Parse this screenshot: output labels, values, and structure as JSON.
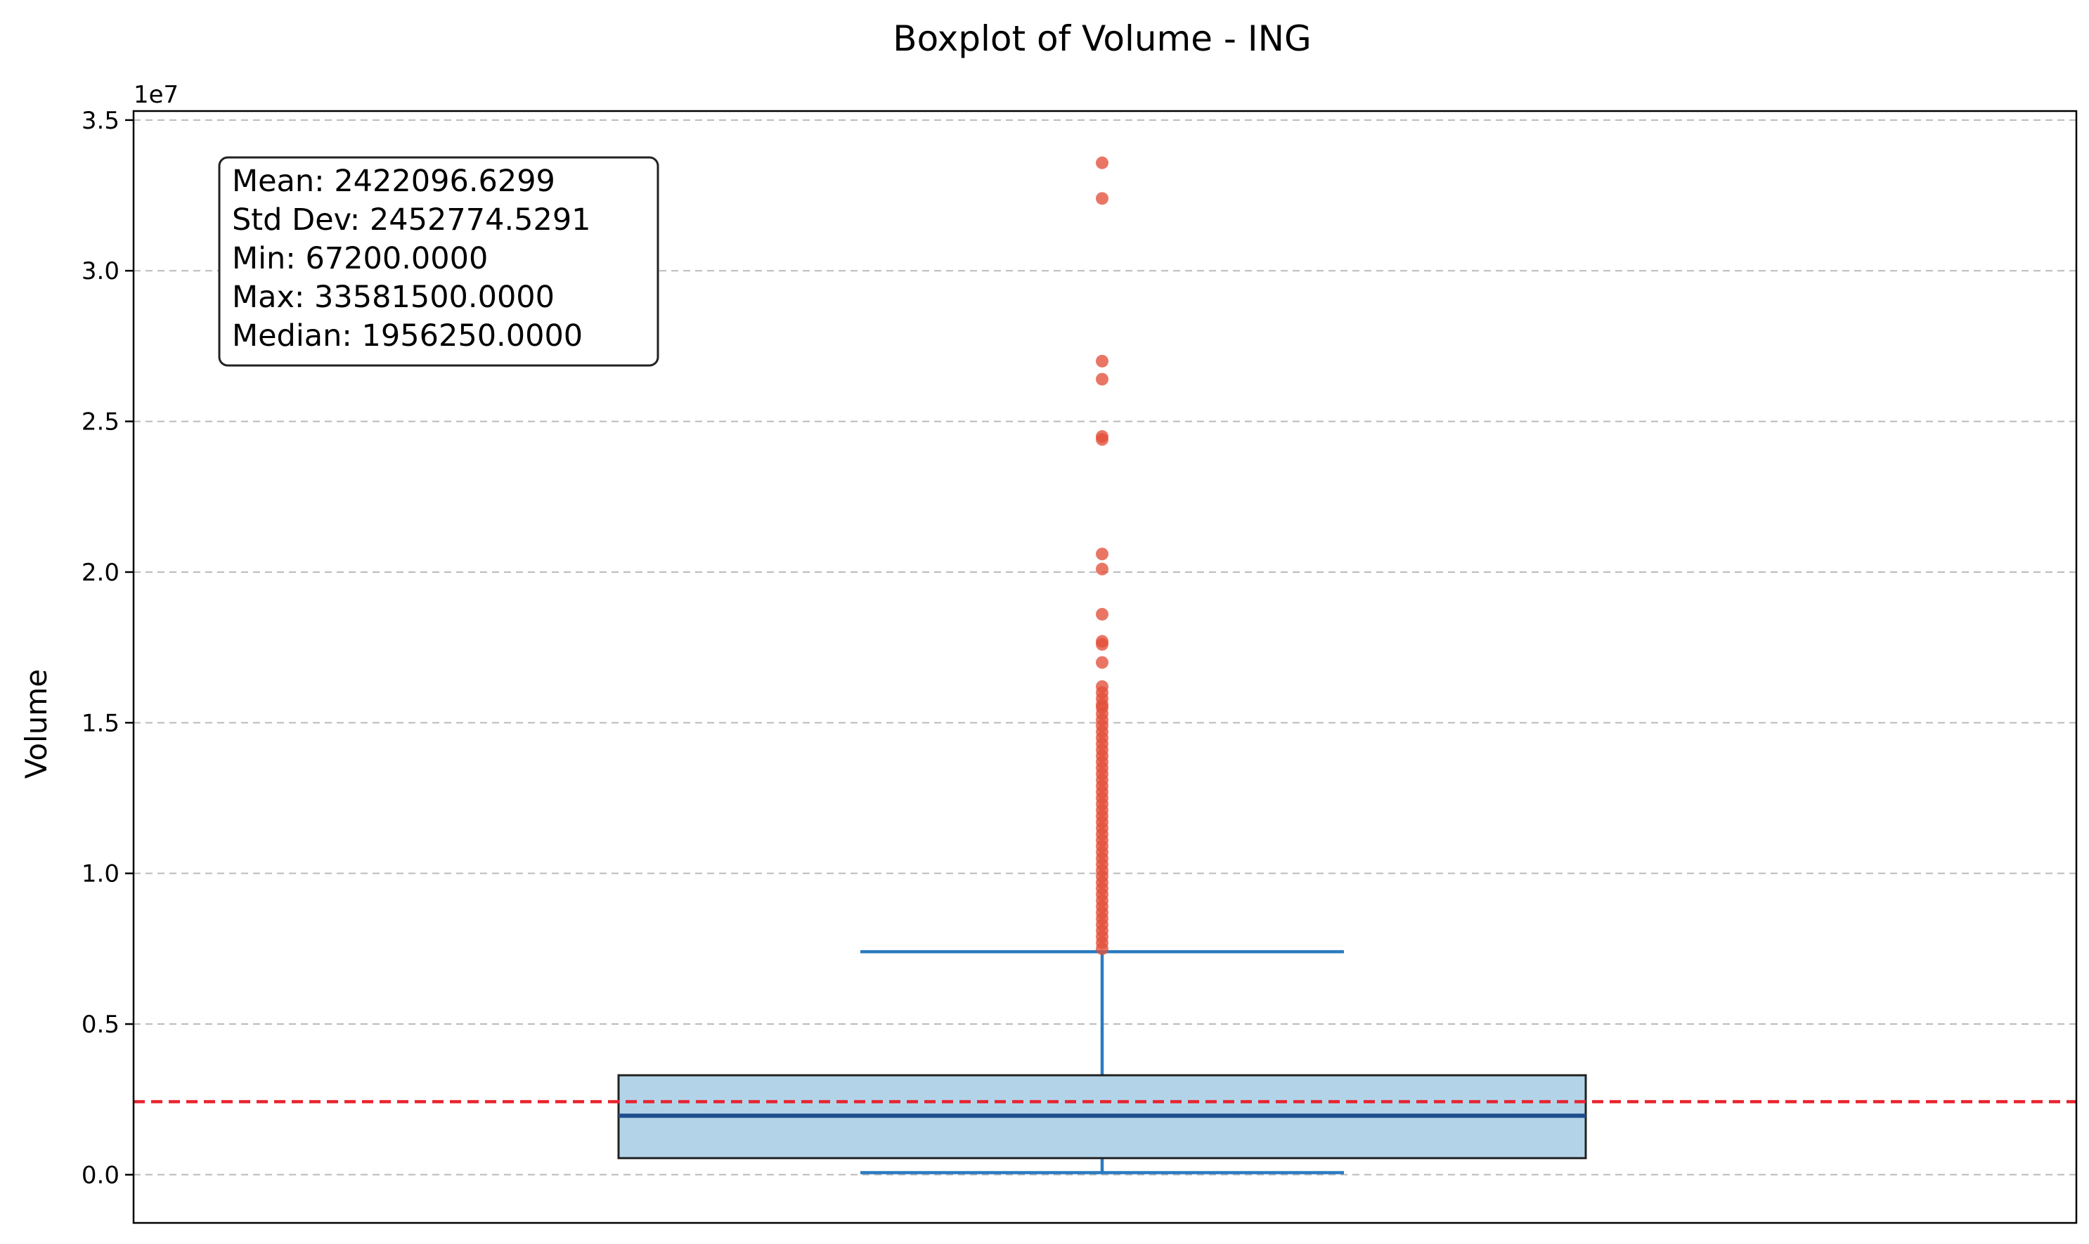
{
  "chart_data": {
    "type": "boxplot",
    "title": "Boxplot of Volume - ING",
    "xlabel": "",
    "ylabel": "Volume",
    "y_offset_label": "1e7",
    "y_scale": 10000000,
    "ylim": [
      -1600000,
      35300000
    ],
    "yticks": [
      0,
      5000000,
      10000000,
      15000000,
      20000000,
      25000000,
      30000000,
      35000000
    ],
    "ytick_labels": [
      "0.0",
      "0.5",
      "1.0",
      "1.5",
      "2.0",
      "2.5",
      "3.0",
      "3.5"
    ],
    "grid": "horizontal dashed",
    "box": {
      "q1": 550000,
      "median": 1956250,
      "q3": 3300000,
      "whisker_low": 67200,
      "whisker_high": 7400000
    },
    "mean_line": 2422096.6299,
    "outliers": [
      33581500,
      32400000,
      27000000,
      26400000,
      24500000,
      24400000,
      20600000,
      20100000,
      18600000,
      17700000,
      17600000,
      17000000,
      16200000,
      16000000,
      15800000,
      15600000,
      15500000,
      15300000,
      15100000,
      14900000,
      14700000,
      14500000,
      14300000,
      14100000,
      13900000,
      13700000,
      13500000,
      13300000,
      13100000,
      12900000,
      12700000,
      12500000,
      12300000,
      12100000,
      11900000,
      11700000,
      11500000,
      11300000,
      11100000,
      10900000,
      10700000,
      10500000,
      10300000,
      10100000,
      9900000,
      9700000,
      9500000,
      9300000,
      9100000,
      8900000,
      8700000,
      8500000,
      8300000,
      8100000,
      7900000,
      7700000,
      7500000
    ],
    "stats_lines": [
      "Mean: 2422096.6299",
      "Std Dev: 2452774.5291",
      "Min: 67200.0000",
      "Max: 33581500.0000",
      "Median: 1956250.0000"
    ],
    "colors": {
      "box_fill": "#b3d4e8",
      "box_edge": "#222222",
      "median": "#1f4e8c",
      "whisker": "#2b7bbf",
      "outlier": "#e3503a",
      "mean": "#e8232f",
      "grid": "#bbbbbb"
    }
  }
}
